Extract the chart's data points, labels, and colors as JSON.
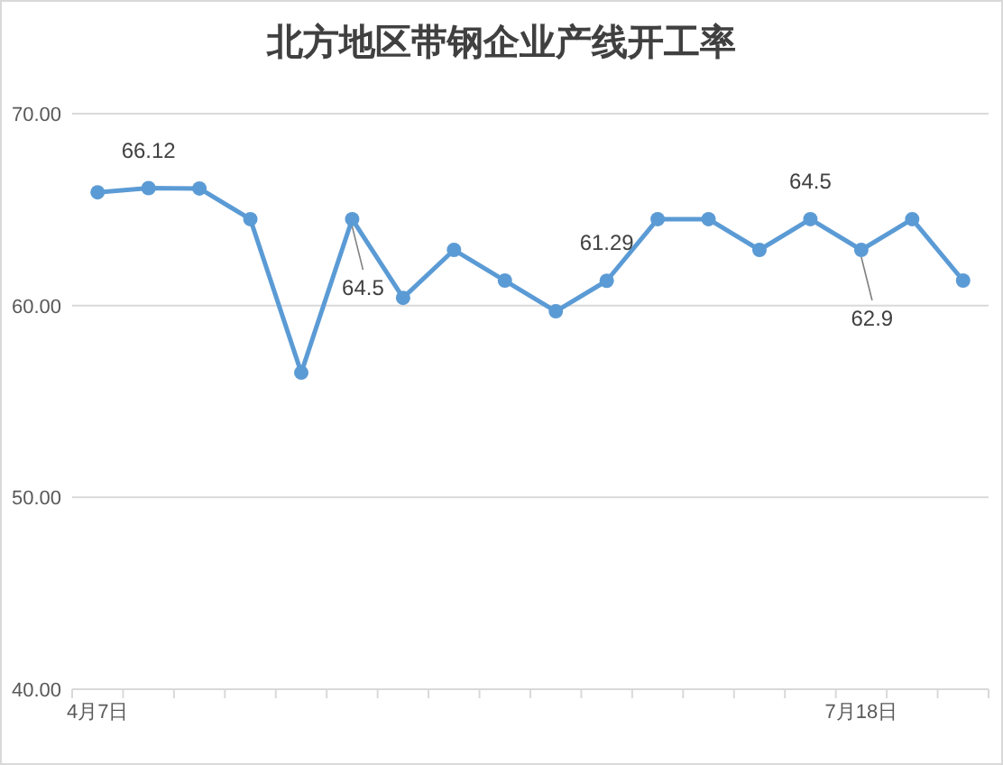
{
  "chart_data": {
    "type": "line",
    "title": "北方地区带钢企业产线开工率",
    "categories": [
      "4月7日",
      null,
      null,
      null,
      null,
      null,
      null,
      null,
      null,
      null,
      null,
      null,
      null,
      null,
      null,
      "7月18日",
      null,
      null
    ],
    "series": [
      {
        "color": "#5b9bd5",
        "values": [
          65.9,
          66.12,
          66.1,
          64.5,
          56.5,
          64.5,
          60.4,
          62.9,
          61.3,
          59.7,
          61.29,
          64.5,
          64.5,
          62.9,
          64.5,
          62.9,
          64.5,
          61.3
        ],
        "value_labels": [
          null,
          "66.12",
          null,
          null,
          null,
          "64.5",
          null,
          null,
          null,
          null,
          "61.29",
          null,
          null,
          null,
          "64.5",
          "62.9",
          null,
          null
        ]
      }
    ],
    "ylim": [
      40,
      70
    ],
    "yticks": [
      {
        "value": 40,
        "label": "40.00"
      },
      {
        "value": 50,
        "label": "50.00"
      },
      {
        "value": 60,
        "label": "60.00"
      },
      {
        "value": 70,
        "label": "70.00"
      }
    ],
    "grid": "y",
    "marker": "circle",
    "line_style": "solid"
  }
}
